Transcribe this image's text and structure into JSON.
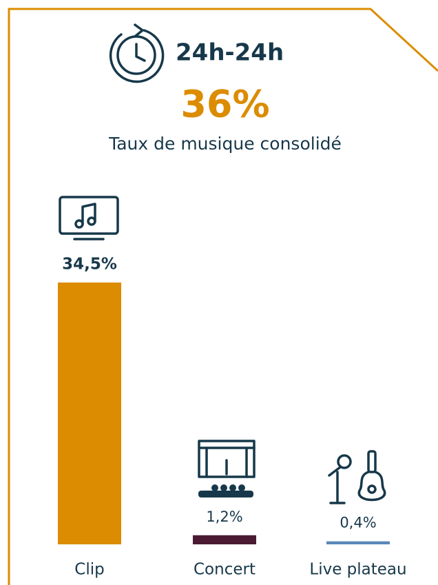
{
  "chart_data": {
    "type": "bar",
    "title": "24h-24h",
    "headline": "36%",
    "subtitle": "Taux de musique consolidé",
    "categories": [
      "Clip",
      "Concert",
      "Live plateau"
    ],
    "values": [
      34.5,
      1.2,
      0.4
    ],
    "value_labels": [
      "34,5%",
      "1,2%",
      "0,4%"
    ],
    "colors": [
      "#dc8c00",
      "#4a1a33",
      "#5a88b8"
    ]
  }
}
